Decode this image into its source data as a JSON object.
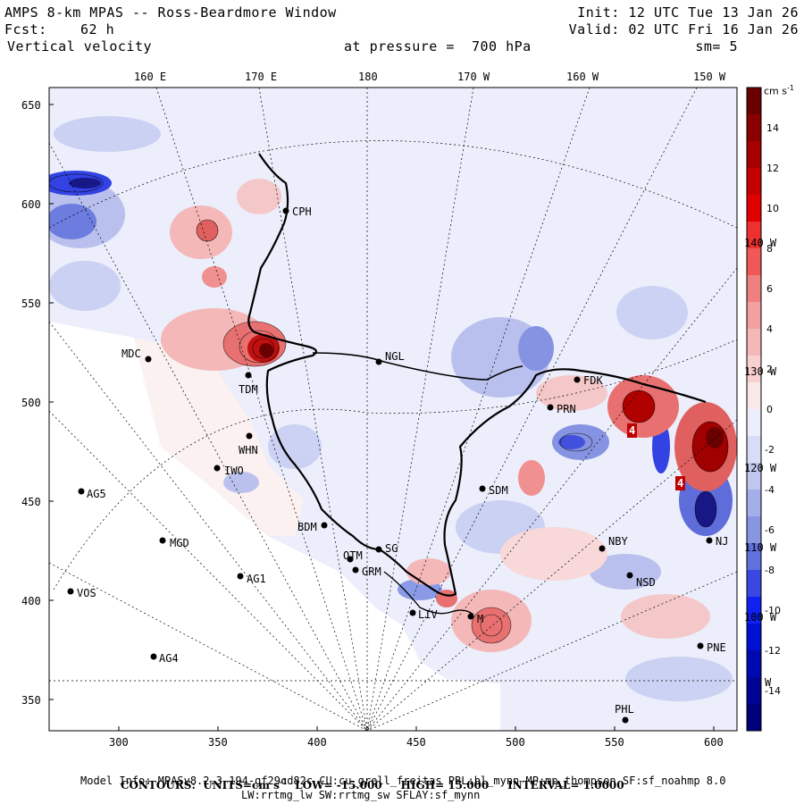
{
  "header": {
    "title": "AMPS 8-km MPAS -- Ross-Beardmore Window",
    "fcst_label": "Fcst:",
    "fcst_value": "62 h",
    "field": "Vertical velocity",
    "pressure": "at pressure =  700 hPa",
    "init": "Init: 12 UTC Tue 13 Jan 26",
    "valid": "Valid: 02 UTC Fri 16 Jan 26",
    "smooth": "sm= 5"
  },
  "map": {
    "top_lon_labels": [
      "160 E",
      "170 E",
      "180",
      "170 W",
      "160 W",
      "150 W"
    ],
    "right_lon_labels": [
      "140 W",
      "130 W",
      "120 W",
      "110 W",
      "100 W",
      "W"
    ],
    "y_ticks": [
      "650",
      "600",
      "550",
      "500",
      "450",
      "400",
      "350"
    ],
    "x_ticks": [
      "300",
      "350",
      "400",
      "450",
      "500",
      "550",
      "600"
    ],
    "stations": [
      {
        "id": "CPH"
      },
      {
        "id": "NGL"
      },
      {
        "id": "MDC"
      },
      {
        "id": "TDM"
      },
      {
        "id": "WHN"
      },
      {
        "id": "IWO"
      },
      {
        "id": "AG5"
      },
      {
        "id": "MGD"
      },
      {
        "id": "AG1"
      },
      {
        "id": "VOS"
      },
      {
        "id": "AG4"
      },
      {
        "id": "BDM"
      },
      {
        "id": "OTM"
      },
      {
        "id": "SG"
      },
      {
        "id": "GRM"
      },
      {
        "id": "FDK"
      },
      {
        "id": "PRN"
      },
      {
        "id": "SDM"
      },
      {
        "id": "NBY"
      },
      {
        "id": "NSD"
      },
      {
        "id": "NJ"
      },
      {
        "id": "PNE"
      },
      {
        "id": "PHL"
      },
      {
        "id": "LIV"
      },
      {
        "id": "M"
      }
    ],
    "max_marks": [
      "4",
      "4"
    ]
  },
  "colorbar": {
    "unit": "cm s",
    "unit_exp": "-1",
    "labels": [
      "14",
      "12",
      "10",
      "8",
      "6",
      "4",
      "2",
      "0",
      "-2",
      "-4",
      "-6",
      "-8",
      "-10",
      "-12",
      "-14"
    ],
    "colors": {
      "pos_dark": "#6b0000",
      "pos_mid": "#e00000",
      "pos_light": "#f4b8b8",
      "neutral": "#eceefb",
      "neg_light": "#b4bcec",
      "neg_mid": "#2030e0",
      "neg_dark": "#00007a"
    }
  },
  "footer": {
    "contours_label": "CONTOURS:",
    "units": "UNITS=cm s",
    "units_exp": "-1",
    "low": "LOW= -15.000",
    "high": "HIGH= 15.000",
    "interval": "INTERVAL= 1.0000",
    "model_info": "Model Info: MPASv8.2.3-194-gf29cd82c CU:cu_grell_freitas PBL:bl_mynn MP:mp_thompson SF:sf_noahmp 8.0",
    "model_info2": "LW:rrtmg_lw SW:rrtmg_sw SFLAY:sf_mynn"
  }
}
